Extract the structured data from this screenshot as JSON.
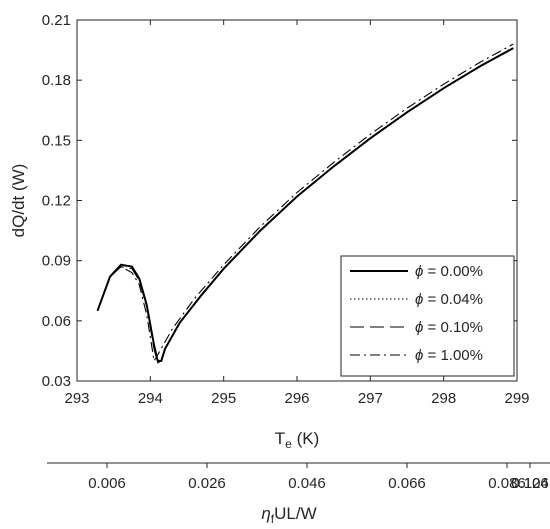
{
  "chart_data": {
    "type": "line",
    "xlabel": "T",
    "xlabel_sub": "e",
    "xlabel_unit": " (K)",
    "ylabel": "dQ/dt (W)",
    "xlim": [
      293,
      299
    ],
    "ylim": [
      0.03,
      0.21
    ],
    "xticks": [
      "293",
      "294",
      "295",
      "296",
      "297",
      "298",
      "299"
    ],
    "yticks": [
      "0.03",
      "0.06",
      "0.09",
      "0.12",
      "0.15",
      "0.18",
      "0.21"
    ],
    "secondary_axis": {
      "label": "UL/W",
      "label_prefix": "η",
      "label_sub": "f",
      "ticks": [
        "0.006",
        "0.026",
        "0.046",
        "0.066",
        "0.086",
        "0.106",
        "0.124"
      ]
    },
    "legend_position": "bottom-right",
    "grid": false,
    "series": [
      {
        "name": " = 0.00%",
        "symbol": "ϕ",
        "style": "solid",
        "x": [
          293.28,
          293.45,
          293.6,
          293.75,
          293.85,
          293.95,
          294.05,
          294.1,
          294.15,
          294.2,
          294.4,
          294.7,
          295.0,
          295.5,
          296.0,
          296.5,
          297.0,
          297.5,
          298.0,
          298.5,
          298.95
        ],
        "y": [
          0.065,
          0.082,
          0.088,
          0.087,
          0.081,
          0.068,
          0.048,
          0.04,
          0.04,
          0.046,
          0.059,
          0.073,
          0.086,
          0.105,
          0.122,
          0.137,
          0.151,
          0.164,
          0.176,
          0.187,
          0.196
        ]
      },
      {
        "name": " = 0.04%",
        "symbol": "ϕ",
        "style": "dotted",
        "x": [
          293.28,
          293.45,
          293.6,
          293.75,
          293.85,
          293.95,
          294.05,
          294.1,
          294.15,
          294.2,
          294.4,
          294.7,
          295.0,
          295.5,
          296.0,
          296.5,
          297.0,
          297.5,
          298.0,
          298.5,
          298.95
        ],
        "y": [
          0.065,
          0.082,
          0.088,
          0.087,
          0.081,
          0.068,
          0.048,
          0.04,
          0.04,
          0.046,
          0.059,
          0.073,
          0.086,
          0.105,
          0.122,
          0.137,
          0.151,
          0.164,
          0.176,
          0.187,
          0.196
        ]
      },
      {
        "name": " = 0.10%",
        "symbol": "ϕ",
        "style": "dashed",
        "x": [
          293.28,
          293.45,
          293.6,
          293.75,
          293.85,
          293.95,
          294.05,
          294.1,
          294.15,
          294.2,
          294.4,
          294.7,
          295.0,
          295.5,
          296.0,
          296.5,
          297.0,
          297.5,
          298.0,
          298.5,
          298.95
        ],
        "y": [
          0.065,
          0.082,
          0.087,
          0.086,
          0.08,
          0.067,
          0.046,
          0.039,
          0.04,
          0.046,
          0.059,
          0.073,
          0.086,
          0.105,
          0.122,
          0.137,
          0.151,
          0.164,
          0.176,
          0.187,
          0.196
        ]
      },
      {
        "name": " = 1.00%",
        "symbol": "ϕ",
        "style": "dashdot",
        "x": [
          293.45,
          293.6,
          293.75,
          293.85,
          293.95,
          294.0,
          294.05,
          294.1,
          294.3,
          294.6,
          295.0,
          295.5,
          296.0,
          296.5,
          297.0,
          297.5,
          298.0,
          298.5,
          298.95
        ],
        "y": [
          0.082,
          0.087,
          0.084,
          0.078,
          0.063,
          0.052,
          0.04,
          0.043,
          0.056,
          0.071,
          0.088,
          0.107,
          0.124,
          0.139,
          0.153,
          0.166,
          0.178,
          0.189,
          0.198
        ]
      }
    ]
  }
}
